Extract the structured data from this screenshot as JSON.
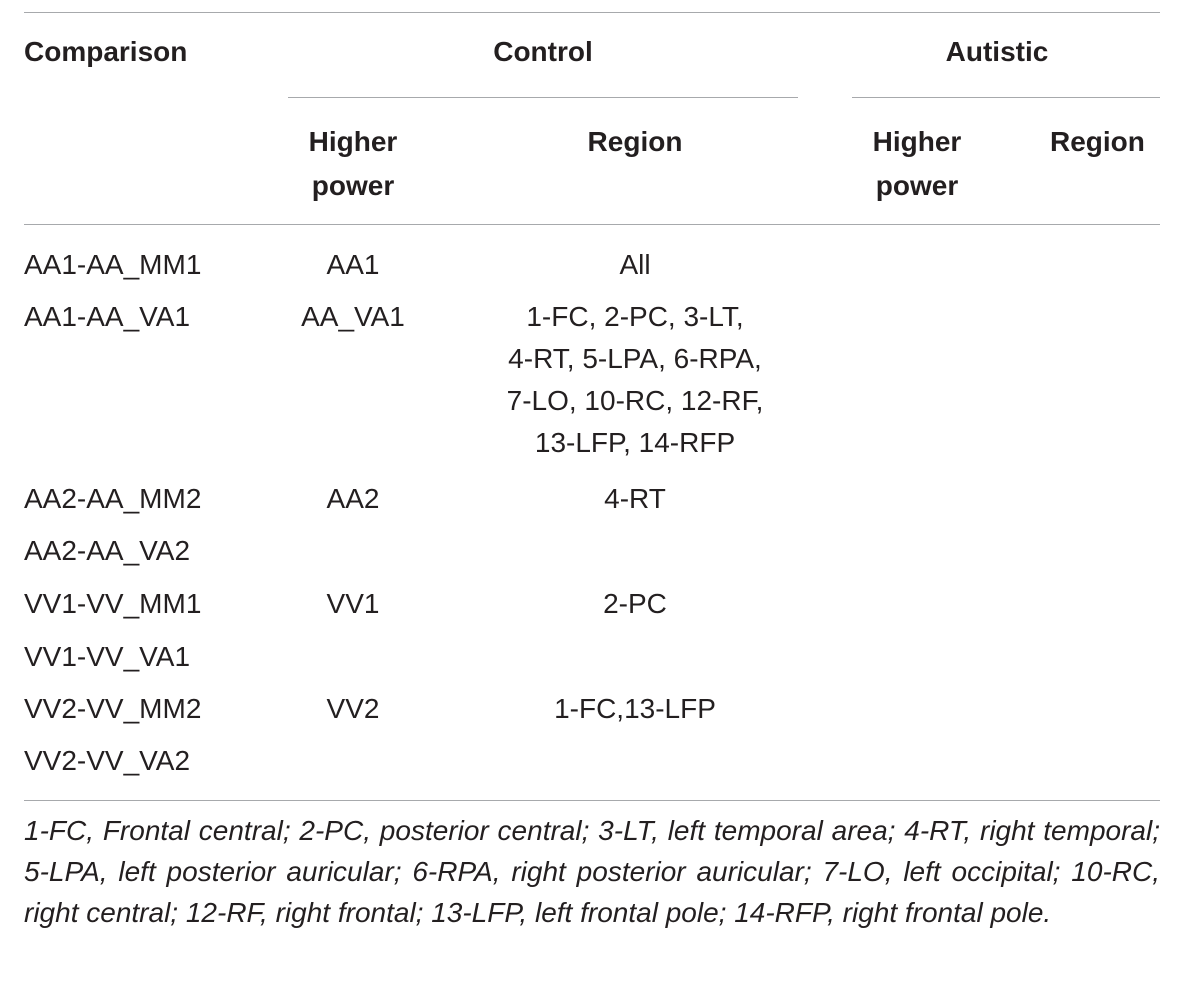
{
  "table": {
    "headers": {
      "comparison": "Comparison",
      "control": "Control",
      "autistic": "Autistic",
      "control_higher_power": "Higher\npower",
      "control_region": "Region",
      "autistic_higher_power": "Higher\npower",
      "autistic_region": "Region"
    },
    "rows": [
      {
        "comparison": "AA1-AA_MM1",
        "control_higher_power": "AA1",
        "control_region": "All",
        "autistic_higher_power": "",
        "autistic_region": ""
      },
      {
        "comparison": "AA1-AA_VA1",
        "control_higher_power": "AA_VA1",
        "control_region": "1-FC, 2-PC, 3-LT,\n4-RT, 5-LPA, 6-RPA,\n7-LO, 10-RC, 12-RF,\n13-LFP, 14-RFP",
        "autistic_higher_power": "",
        "autistic_region": ""
      },
      {
        "comparison": "AA2-AA_MM2",
        "control_higher_power": "AA2",
        "control_region": "4-RT",
        "autistic_higher_power": "",
        "autistic_region": ""
      },
      {
        "comparison": "AA2-AA_VA2",
        "control_higher_power": "",
        "control_region": "",
        "autistic_higher_power": "",
        "autistic_region": ""
      },
      {
        "comparison": "VV1-VV_MM1",
        "control_higher_power": "VV1",
        "control_region": "2-PC",
        "autistic_higher_power": "",
        "autistic_region": ""
      },
      {
        "comparison": "VV1-VV_VA1",
        "control_higher_power": "",
        "control_region": "",
        "autistic_higher_power": "",
        "autistic_region": ""
      },
      {
        "comparison": "VV2-VV_MM2",
        "control_higher_power": "VV2",
        "control_region": "1-FC,13-LFP",
        "autistic_higher_power": "",
        "autistic_region": ""
      },
      {
        "comparison": "VV2-VV_VA2",
        "control_higher_power": "",
        "control_region": "",
        "autistic_higher_power": "",
        "autistic_region": ""
      }
    ]
  },
  "footnote": "1-FC, Frontal central; 2-PC, posterior central; 3-LT, left temporal area; 4-RT, right temporal; 5-LPA, left posterior auricular; 6-RPA, right posterior auricular; 7-LO, left occipital; 10-RC, right central; 12-RF, right frontal; 13-LFP, left frontal pole; 14-RFP, right frontal pole."
}
